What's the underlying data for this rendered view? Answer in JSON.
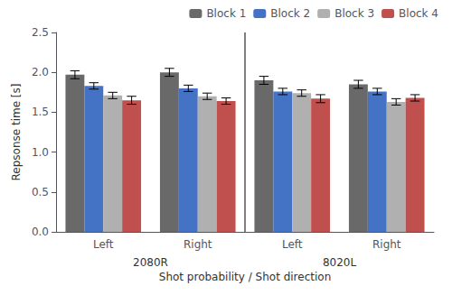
{
  "chart_data": {
    "type": "bar",
    "xlabel": "Shot probability / Shot direction",
    "ylabel": "Repsonse time [s]",
    "categories": [
      "Left",
      "Right",
      "Left",
      "Right"
    ],
    "annotations": [
      "2080R",
      "8020L"
    ],
    "series": [
      {
        "name": "Block 1",
        "color": "#696969",
        "values": [
          1.97,
          2.0,
          1.9,
          1.85
        ],
        "errors": [
          0.05,
          0.05,
          0.05,
          0.05
        ]
      },
      {
        "name": "Block 2",
        "color": "#4472C4",
        "values": [
          1.83,
          1.8,
          1.76,
          1.76
        ],
        "errors": [
          0.04,
          0.04,
          0.04,
          0.04
        ]
      },
      {
        "name": "Block 3",
        "color": "#B0B0B0",
        "values": [
          1.71,
          1.7,
          1.74,
          1.63
        ],
        "errors": [
          0.04,
          0.04,
          0.04,
          0.04
        ]
      },
      {
        "name": "Block 4",
        "color": "#C0504D",
        "values": [
          1.65,
          1.64,
          1.67,
          1.68
        ],
        "errors": [
          0.05,
          0.04,
          0.05,
          0.04
        ]
      }
    ],
    "ylim": [
      0,
      2.5
    ],
    "yticks": [
      {
        "value": 0,
        "label": "0.0"
      },
      0.5,
      {
        "value": 1,
        "label": "1.0"
      },
      1.5,
      {
        "value": 2,
        "label": "2.0"
      },
      2.5
    ],
    "grid": false,
    "legend": "upper right"
  }
}
